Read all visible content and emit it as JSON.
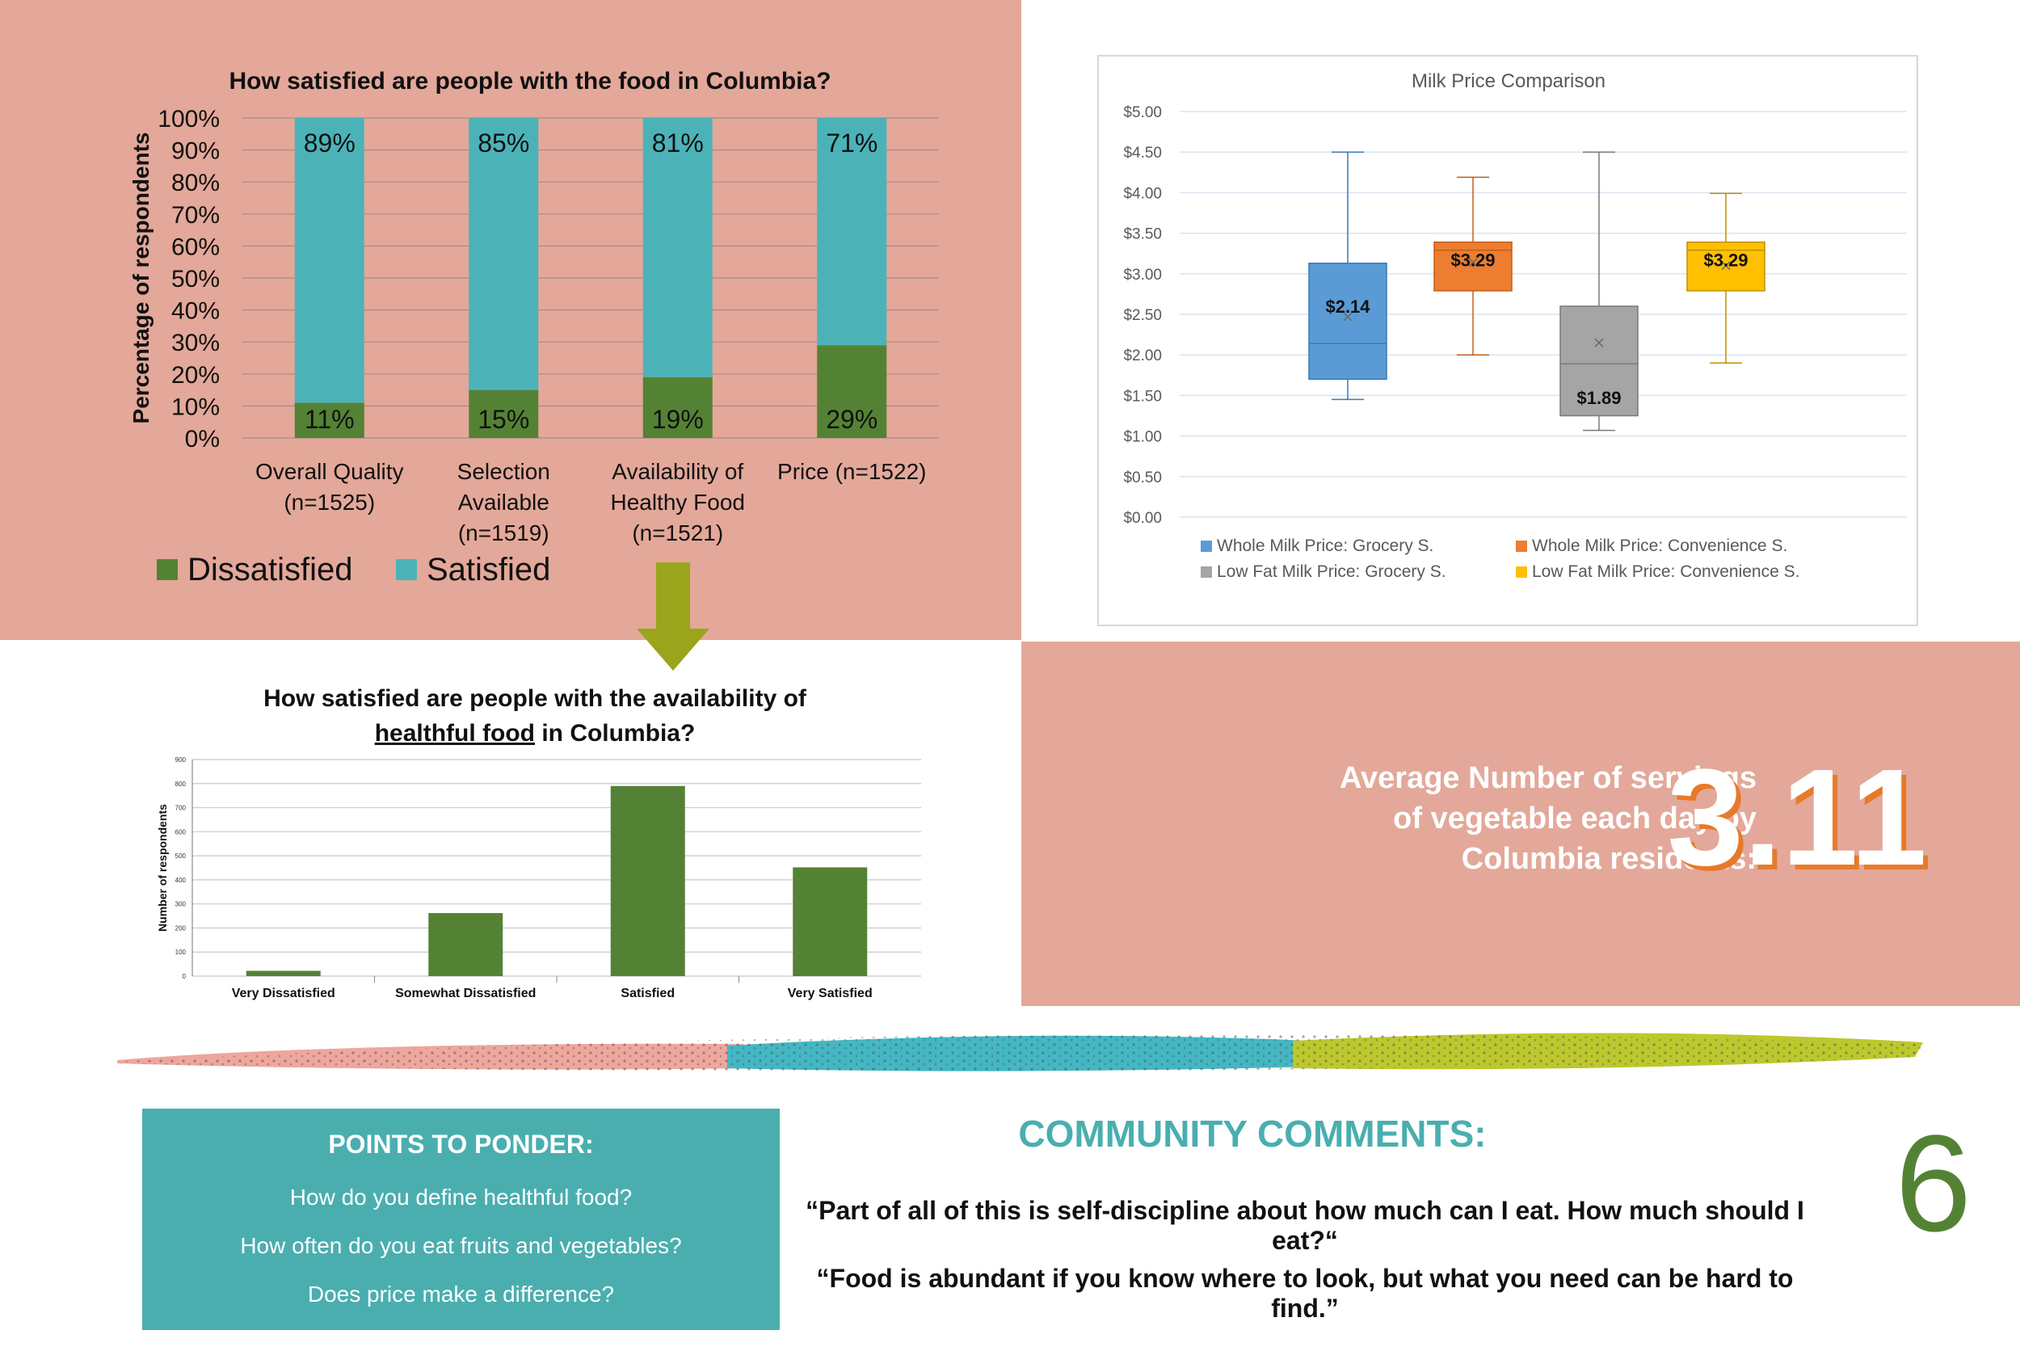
{
  "chart_data": [
    {
      "type": "bar",
      "stacked": true,
      "title": "How satisfied are people with the food in Columbia?",
      "xlabel": "",
      "ylabel": "Percentage of respondents",
      "ylim": [
        0,
        100
      ],
      "yticks": [
        "0%",
        "10%",
        "20%",
        "30%",
        "40%",
        "50%",
        "60%",
        "70%",
        "80%",
        "90%",
        "100%"
      ],
      "categories": [
        [
          "Overall Quality",
          "(n=1525)"
        ],
        [
          "Selection",
          "Available",
          "(n=1519)"
        ],
        [
          "Availability of",
          "Healthy Food",
          "(n=1521)"
        ],
        [
          "Price (n=1522)"
        ]
      ],
      "series": [
        {
          "name": "Dissatisfied",
          "values": [
            11,
            15,
            19,
            29
          ],
          "labels": [
            "11%",
            "15%",
            "19%",
            "29%"
          ],
          "color": "#548235"
        },
        {
          "name": "Satisfied",
          "values": [
            89,
            85,
            81,
            71
          ],
          "labels": [
            "89%",
            "85%",
            "81%",
            "71%"
          ],
          "color": "#4bb3b8"
        }
      ],
      "legend_position": "bottom-left",
      "grid": true
    },
    {
      "type": "boxplot",
      "title": "Milk Price Comparison",
      "ylim": [
        0,
        5
      ],
      "yticks": [
        "$0.00",
        "$0.50",
        "$1.00",
        "$1.50",
        "$2.00",
        "$2.50",
        "$3.00",
        "$3.50",
        "$4.00",
        "$4.50",
        "$5.00"
      ],
      "series": [
        {
          "name": "Whole Milk Price: Grocery S.",
          "min": 1.45,
          "q1": 1.7,
          "median": 2.14,
          "q3": 3.13,
          "max": 4.5,
          "mean": 2.47,
          "label": "$2.14",
          "color": "#5b9bd5"
        },
        {
          "name": "Whole Milk Price: Convenience S.",
          "min": 2.0,
          "q1": 2.79,
          "median": 3.29,
          "q3": 3.39,
          "max": 4.19,
          "mean": 3.14,
          "label": "$3.29",
          "color": "#ed7d31"
        },
        {
          "name": "Low Fat Milk Price: Grocery S.",
          "min": 1.07,
          "q1": 1.25,
          "median": 1.89,
          "q3": 2.6,
          "max": 4.5,
          "mean": 2.15,
          "label": "$1.89",
          "color": "#a5a5a5"
        },
        {
          "name": "Low Fat Milk Price: Convenience S.",
          "min": 1.9,
          "q1": 2.79,
          "median": 3.29,
          "q3": 3.39,
          "max": 3.99,
          "mean": 3.1,
          "label": "$3.29",
          "color": "#ffc000"
        }
      ],
      "legend_position": "bottom",
      "grid": true
    },
    {
      "type": "bar",
      "title": "How satisfied are people with the availability of healthful food in Columbia?",
      "title_lines": [
        "How satisfied are people with the availability of",
        "healthful food",
        " in Columbia?"
      ],
      "ylabel": "Number of respondents",
      "ylim": [
        0,
        900
      ],
      "yticks": [
        "0",
        "100",
        "200",
        "300",
        "400",
        "500",
        "600",
        "700",
        "800",
        "900"
      ],
      "categories": [
        "Very Dissatisfied",
        "Somewhat Dissatisfied",
        "Satisfied",
        "Very Satisfied"
      ],
      "values": [
        22,
        262,
        790,
        452
      ],
      "color": "#548235",
      "grid": true
    }
  ],
  "average": {
    "label_lines": [
      "Average Number of servings",
      "of vegetable each day by",
      "Columbia residents:"
    ],
    "value": "3.11"
  },
  "ponder": {
    "title": "POINTS TO PONDER:",
    "items": [
      "How do you define healthful food?",
      "How often do you eat fruits and vegetables?",
      "Does price make a difference?"
    ]
  },
  "comments": {
    "title": "COMMUNITY COMMENTS:",
    "quotes": [
      "“Part of all of this is self-discipline about how much can I eat. How much should I eat?“",
      "“Food is abundant if you know where to look, but what you need can be hard to find.”"
    ]
  },
  "page_number": "6",
  "colors": {
    "salmon": "#e3a899",
    "teal": "#4aaeaf",
    "green": "#548235",
    "arrow": "#9aa51c",
    "orange_shadow": "#e67a2a"
  }
}
